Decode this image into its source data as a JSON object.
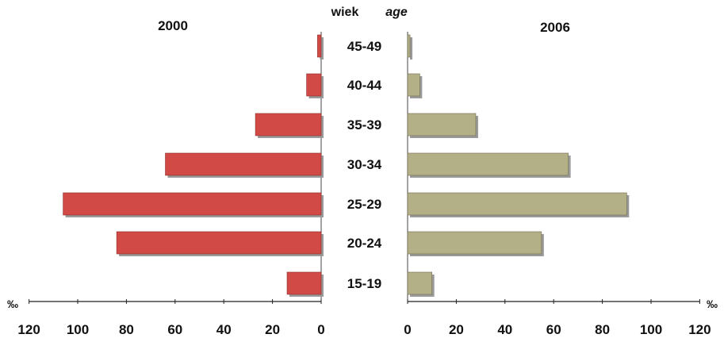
{
  "chart_data": {
    "type": "bar",
    "orientation": "horizontal",
    "layout": "population-pyramid",
    "header": {
      "word_pl": "wiek",
      "word_en": "age"
    },
    "categories": [
      "45-49",
      "40-44",
      "35-39",
      "30-34",
      "25-29",
      "20-24",
      "15-19"
    ],
    "series": [
      {
        "name": "2000",
        "side": "left",
        "color": "#d24a46",
        "values": [
          1.5,
          6,
          27,
          64,
          106,
          84,
          14
        ]
      },
      {
        "name": "2006",
        "side": "right",
        "color": "#b3b088",
        "values": [
          1,
          5,
          28,
          66,
          90,
          55,
          10
        ]
      }
    ],
    "xlim": [
      0,
      120
    ],
    "ticks": [
      0,
      20,
      40,
      60,
      80,
      100,
      120
    ],
    "tick_labels": [
      "0",
      "20",
      "40",
      "60",
      "80",
      "100",
      "120"
    ],
    "unit": "‰",
    "grid": false
  }
}
